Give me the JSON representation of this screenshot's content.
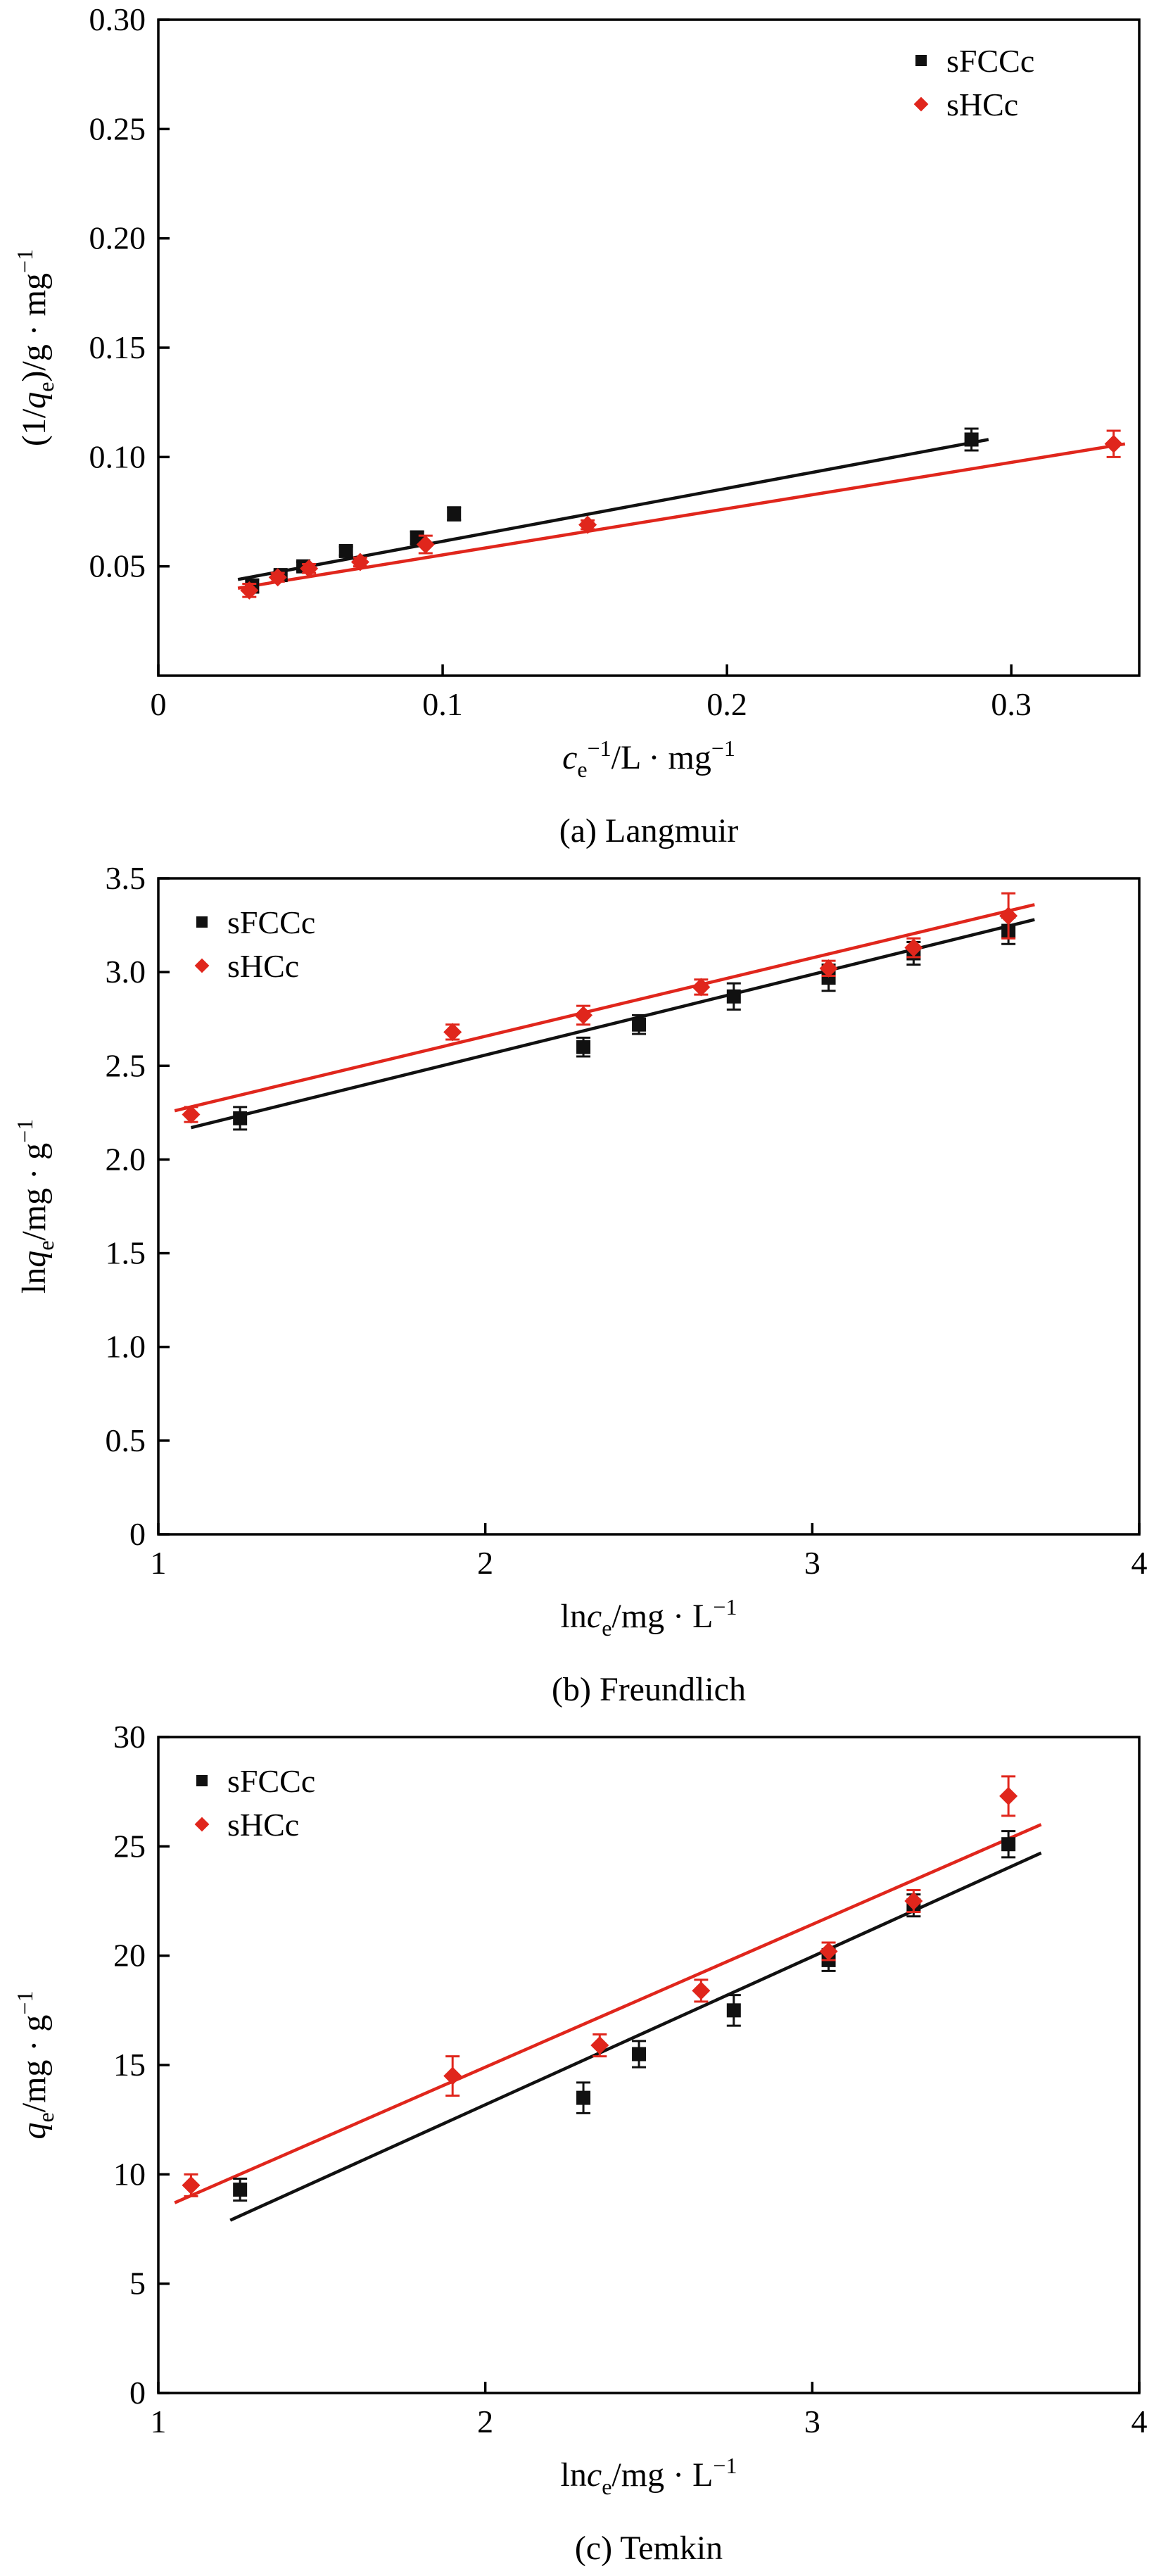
{
  "page": {
    "background": "#ffffff",
    "text_color": "#000000"
  },
  "chart_data": [
    {
      "type": "scatter",
      "caption": "(a) Langmuir",
      "xlim": [
        0,
        0.345
      ],
      "ylim": [
        0,
        0.3
      ],
      "grid": false,
      "legend_pos": "top-right",
      "xticks": [
        {
          "v": 0,
          "l": "0"
        },
        {
          "v": 0.1,
          "l": "0.1"
        },
        {
          "v": 0.2,
          "l": "0.2"
        },
        {
          "v": 0.3,
          "l": "0.3"
        }
      ],
      "yticks": [
        {
          "v": 0.05,
          "l": "0.05"
        },
        {
          "v": 0.1,
          "l": "0.10"
        },
        {
          "v": 0.15,
          "l": "0.15"
        },
        {
          "v": 0.2,
          "l": "0.20"
        },
        {
          "v": 0.25,
          "l": "0.25"
        },
        {
          "v": 0.3,
          "l": "0.30"
        }
      ],
      "xlabel_parts": [
        {
          "t": "c",
          "i": true
        },
        {
          "t": "e",
          "p": "sub"
        },
        {
          "t": "−1",
          "p": "sup"
        },
        {
          "t": "/L · mg"
        },
        {
          "t": "−1",
          "p": "sup"
        }
      ],
      "ylabel_parts": [
        {
          "t": "(1/"
        },
        {
          "t": "q",
          "i": true
        },
        {
          "t": "e",
          "p": "sub"
        },
        {
          "t": ")/g · mg"
        },
        {
          "t": "−1",
          "p": "sup"
        }
      ],
      "series": [
        {
          "name": "sFCCc",
          "color": "#111111",
          "marker": "square",
          "points": [
            {
              "x": 0.033,
              "y": 0.041,
              "e": 0.003
            },
            {
              "x": 0.043,
              "y": 0.046,
              "e": 0.002
            },
            {
              "x": 0.051,
              "y": 0.05,
              "e": 0.002
            },
            {
              "x": 0.066,
              "y": 0.057,
              "e": 0.002
            },
            {
              "x": 0.091,
              "y": 0.063,
              "e": 0.003
            },
            {
              "x": 0.104,
              "y": 0.074,
              "e": 0.003
            },
            {
              "x": 0.286,
              "y": 0.108,
              "e": 0.005
            }
          ],
          "fit": {
            "x1": 0.028,
            "y1": 0.044,
            "x2": 0.292,
            "y2": 0.108
          }
        },
        {
          "name": "sHCc",
          "color": "#e0261c",
          "marker": "diamond",
          "points": [
            {
              "x": 0.032,
              "y": 0.039,
              "e": 0.003
            },
            {
              "x": 0.042,
              "y": 0.045,
              "e": 0.002
            },
            {
              "x": 0.053,
              "y": 0.049,
              "e": 0.002
            },
            {
              "x": 0.071,
              "y": 0.052,
              "e": 0.002
            },
            {
              "x": 0.094,
              "y": 0.06,
              "e": 0.004
            },
            {
              "x": 0.151,
              "y": 0.069,
              "e": 0.002
            },
            {
              "x": 0.336,
              "y": 0.106,
              "e": 0.006
            }
          ],
          "fit": {
            "x1": 0.028,
            "y1": 0.04,
            "x2": 0.34,
            "y2": 0.106
          }
        }
      ]
    },
    {
      "type": "scatter",
      "caption": "(b) Freundlich",
      "xlim": [
        1,
        4
      ],
      "ylim": [
        0,
        3.5
      ],
      "grid": false,
      "legend_pos": "top-left",
      "xticks": [
        {
          "v": 1,
          "l": "1"
        },
        {
          "v": 2,
          "l": "2"
        },
        {
          "v": 3,
          "l": "3"
        },
        {
          "v": 4,
          "l": "4"
        }
      ],
      "yticks": [
        {
          "v": 0,
          "l": "0"
        },
        {
          "v": 0.5,
          "l": "0.5"
        },
        {
          "v": 1.0,
          "l": "1.0"
        },
        {
          "v": 1.5,
          "l": "1.5"
        },
        {
          "v": 2.0,
          "l": "2.0"
        },
        {
          "v": 2.5,
          "l": "2.5"
        },
        {
          "v": 3.0,
          "l": "3.0"
        },
        {
          "v": 3.5,
          "l": "3.5"
        }
      ],
      "xlabel_parts": [
        {
          "t": "ln"
        },
        {
          "t": "c",
          "i": true
        },
        {
          "t": "e",
          "p": "sub"
        },
        {
          "t": "/mg · L"
        },
        {
          "t": "−1",
          "p": "sup"
        }
      ],
      "ylabel_parts": [
        {
          "t": "ln"
        },
        {
          "t": "q",
          "i": true
        },
        {
          "t": "e",
          "p": "sub"
        },
        {
          "t": "/mg · g"
        },
        {
          "t": "−1",
          "p": "sup"
        }
      ],
      "series": [
        {
          "name": "sFCCc",
          "color": "#111111",
          "marker": "square",
          "points": [
            {
              "x": 1.25,
              "y": 2.22,
              "e": 0.06
            },
            {
              "x": 2.3,
              "y": 2.6,
              "e": 0.05
            },
            {
              "x": 2.47,
              "y": 2.72,
              "e": 0.05
            },
            {
              "x": 2.76,
              "y": 2.87,
              "e": 0.07
            },
            {
              "x": 3.05,
              "y": 2.97,
              "e": 0.07
            },
            {
              "x": 3.31,
              "y": 3.1,
              "e": 0.06
            },
            {
              "x": 3.6,
              "y": 3.22,
              "e": 0.07
            }
          ],
          "fit": {
            "x1": 1.1,
            "y1": 2.17,
            "x2": 3.68,
            "y2": 3.28
          }
        },
        {
          "name": "sHCc",
          "color": "#e0261c",
          "marker": "diamond",
          "points": [
            {
              "x": 1.1,
              "y": 2.24,
              "e": 0.04
            },
            {
              "x": 1.9,
              "y": 2.68,
              "e": 0.04
            },
            {
              "x": 2.3,
              "y": 2.77,
              "e": 0.05
            },
            {
              "x": 2.66,
              "y": 2.92,
              "e": 0.04
            },
            {
              "x": 3.05,
              "y": 3.02,
              "e": 0.04
            },
            {
              "x": 3.31,
              "y": 3.13,
              "e": 0.05
            },
            {
              "x": 3.6,
              "y": 3.3,
              "e": 0.12
            }
          ],
          "fit": {
            "x1": 1.05,
            "y1": 2.26,
            "x2": 3.68,
            "y2": 3.36
          }
        }
      ]
    },
    {
      "type": "scatter",
      "caption": "(c) Temkin",
      "xlim": [
        1,
        4
      ],
      "ylim": [
        0,
        30
      ],
      "grid": false,
      "legend_pos": "top-left",
      "xticks": [
        {
          "v": 1,
          "l": "1"
        },
        {
          "v": 2,
          "l": "2"
        },
        {
          "v": 3,
          "l": "3"
        },
        {
          "v": 4,
          "l": "4"
        }
      ],
      "yticks": [
        {
          "v": 0,
          "l": "0"
        },
        {
          "v": 5,
          "l": "5"
        },
        {
          "v": 10,
          "l": "10"
        },
        {
          "v": 15,
          "l": "15"
        },
        {
          "v": 20,
          "l": "20"
        },
        {
          "v": 25,
          "l": "25"
        },
        {
          "v": 30,
          "l": "30"
        }
      ],
      "xlabel_parts": [
        {
          "t": "ln"
        },
        {
          "t": "c",
          "i": true
        },
        {
          "t": "e",
          "p": "sub"
        },
        {
          "t": "/mg · L"
        },
        {
          "t": "−1",
          "p": "sup"
        }
      ],
      "ylabel_parts": [
        {
          "t": "q",
          "i": true
        },
        {
          "t": "e",
          "p": "sub"
        },
        {
          "t": "/mg · g"
        },
        {
          "t": "−1",
          "p": "sup"
        }
      ],
      "series": [
        {
          "name": "sFCCc",
          "color": "#111111",
          "marker": "square",
          "points": [
            {
              "x": 1.25,
              "y": 9.3,
              "e": 0.5
            },
            {
              "x": 2.3,
              "y": 13.5,
              "e": 0.7
            },
            {
              "x": 2.47,
              "y": 15.5,
              "e": 0.6
            },
            {
              "x": 2.76,
              "y": 17.5,
              "e": 0.7
            },
            {
              "x": 3.05,
              "y": 19.8,
              "e": 0.5
            },
            {
              "x": 3.31,
              "y": 22.3,
              "e": 0.5
            },
            {
              "x": 3.6,
              "y": 25.1,
              "e": 0.6
            }
          ],
          "fit": {
            "x1": 1.22,
            "y1": 7.9,
            "x2": 3.7,
            "y2": 24.7
          }
        },
        {
          "name": "sHCc",
          "color": "#e0261c",
          "marker": "diamond",
          "points": [
            {
              "x": 1.1,
              "y": 9.5,
              "e": 0.5
            },
            {
              "x": 1.9,
              "y": 14.5,
              "e": 0.9
            },
            {
              "x": 2.35,
              "y": 15.9,
              "e": 0.5
            },
            {
              "x": 2.66,
              "y": 18.4,
              "e": 0.5
            },
            {
              "x": 3.05,
              "y": 20.2,
              "e": 0.4
            },
            {
              "x": 3.31,
              "y": 22.5,
              "e": 0.5
            },
            {
              "x": 3.6,
              "y": 27.3,
              "e": 0.9
            }
          ],
          "fit": {
            "x1": 1.05,
            "y1": 8.7,
            "x2": 3.7,
            "y2": 26.0
          }
        }
      ]
    }
  ]
}
